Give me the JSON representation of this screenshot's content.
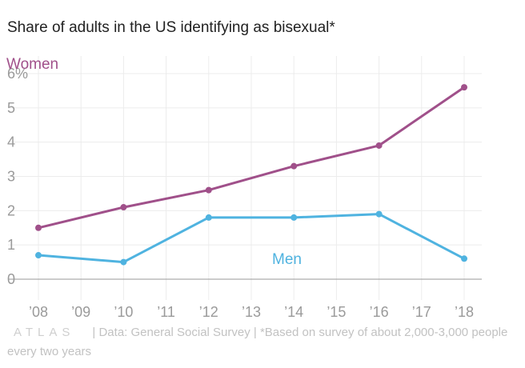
{
  "chart_data": {
    "type": "line",
    "title": "Share of adults in the US identifying as bisexual*",
    "x_ticks": [
      "’08",
      "’09",
      "’10",
      "’11",
      "’12",
      "’13",
      "’14",
      "’15",
      "’16",
      "’17",
      "’18"
    ],
    "y_ticks": [
      "0",
      "1",
      "2",
      "3",
      "4",
      "5",
      "6%"
    ],
    "xlim": [
      2008,
      2018
    ],
    "ylim": [
      0,
      6
    ],
    "grid": true,
    "series": [
      {
        "name": "Women",
        "color": "#a0508a",
        "x": [
          2008,
          2010,
          2012,
          2014,
          2016,
          2018
        ],
        "values": [
          1.5,
          2.1,
          2.6,
          3.3,
          3.9,
          5.6
        ]
      },
      {
        "name": "Men",
        "color": "#4fb3e0",
        "x": [
          2008,
          2010,
          2012,
          2014,
          2016,
          2018
        ],
        "values": [
          0.7,
          0.5,
          1.8,
          1.8,
          1.9,
          0.6
        ]
      }
    ]
  },
  "footer": {
    "logo": "ATLAS",
    "source": "| Data: General Social Survey | *Based on survey of about 2,000-3,000 people every two years"
  }
}
